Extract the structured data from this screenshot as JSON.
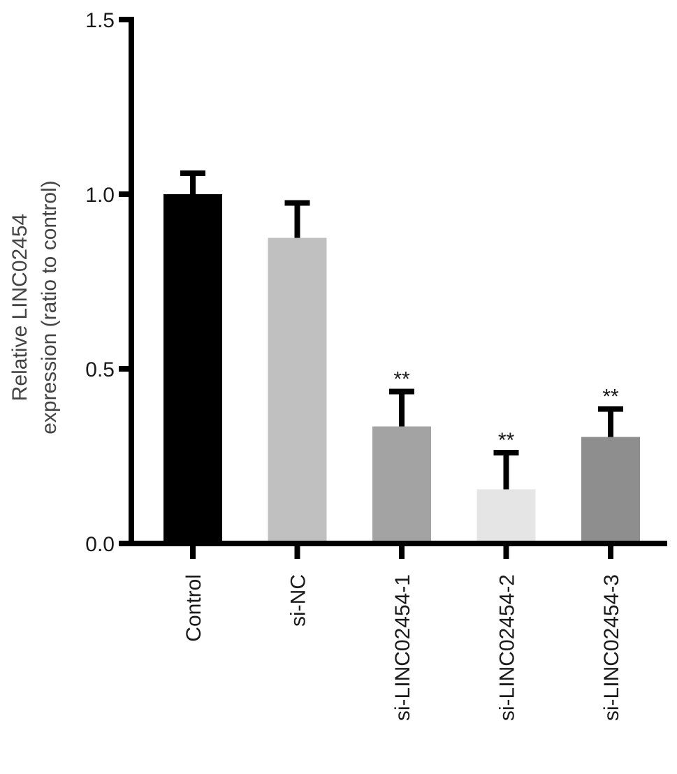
{
  "chart_data": {
    "type": "bar",
    "title": "",
    "xlabel": "",
    "ylabel_lines": [
      "Relative LINC02454",
      "expression (ratio to control)"
    ],
    "ylim": [
      0,
      1.5
    ],
    "yticks": [
      0.0,
      0.5,
      1.0,
      1.5
    ],
    "ytick_labels": [
      "0.0",
      "0.5",
      "1.0",
      "1.5"
    ],
    "categories": [
      "Control",
      "si-NC",
      "si-LINC02454-1",
      "si-LINC02454-2",
      "si-LINC02454-3"
    ],
    "values": [
      1.0,
      0.875,
      0.335,
      0.155,
      0.305
    ],
    "errors": [
      0.06,
      0.1,
      0.1,
      0.105,
      0.08
    ],
    "significance": [
      "",
      "",
      "**",
      "**",
      "**"
    ],
    "bar_colors": [
      "#000000",
      "#c0c0c0",
      "#a3a3a3",
      "#e5e5e5",
      "#8e8e8e"
    ],
    "grid": false,
    "legend": "none"
  }
}
